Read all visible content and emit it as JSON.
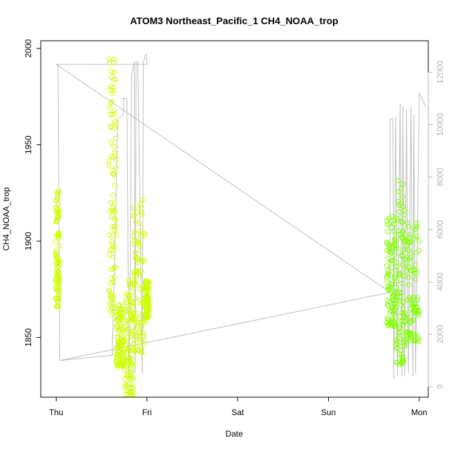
{
  "chart_data": {
    "type": "scatter",
    "title": "ATOM3 Northeast_Pacific_1 CH4_NOAA_trop",
    "xlabel": "Date",
    "ylabel": "CH4_NOAA_trop",
    "x_ticks": [
      "Thu",
      "Fri",
      "Sat",
      "Sun",
      "Mon"
    ],
    "x_unit": "days since start of Thu",
    "xlim": [
      -0.17,
      4.1
    ],
    "ylim": [
      1819,
      2004
    ],
    "y_ticks": [
      1850,
      1900,
      1950,
      2000
    ],
    "y2lim": [
      -400,
      13200
    ],
    "y2_ticks": [
      0,
      2000,
      4000,
      6000,
      8000,
      10000,
      12000
    ],
    "grid": false,
    "legend": "none",
    "colors": {
      "early_points": "#ccff00",
      "late_points": "#80ff00",
      "secondary_line": "#bebebe",
      "axis": "#000000"
    },
    "point_clusters": [
      {
        "x0": -0.01,
        "x1": 0.04,
        "y0": 1866,
        "y1": 1926,
        "color": "early"
      },
      {
        "x0": 0.58,
        "x1": 0.66,
        "y0": 1862,
        "y1": 1996,
        "color": "early"
      },
      {
        "x0": 0.66,
        "x1": 0.75,
        "y0": 1835,
        "y1": 1868,
        "color": "early"
      },
      {
        "x0": 0.75,
        "x1": 0.85,
        "y0": 1820,
        "y1": 1880,
        "color": "early"
      },
      {
        "x0": 0.85,
        "x1": 0.98,
        "y0": 1842,
        "y1": 1926,
        "color": "early"
      },
      {
        "x0": 0.98,
        "x1": 1.02,
        "y0": 1860,
        "y1": 1880,
        "color": "early"
      },
      {
        "x0": 3.64,
        "x1": 3.74,
        "y0": 1856,
        "y1": 1915,
        "color": "late"
      },
      {
        "x0": 3.74,
        "x1": 3.84,
        "y0": 1836,
        "y1": 1932,
        "color": "late"
      },
      {
        "x0": 3.84,
        "x1": 4.0,
        "y0": 1848,
        "y1": 1910,
        "color": "late"
      }
    ],
    "secondary_line": [
      [
        0.0,
        12300
      ],
      [
        0.01,
        12300
      ],
      [
        0.02,
        12300
      ],
      [
        0.04,
        1000
      ],
      [
        0.62,
        1200
      ],
      [
        0.62,
        2000
      ],
      [
        0.62,
        1500
      ],
      [
        0.68,
        10200
      ],
      [
        0.74,
        10400
      ],
      [
        0.74,
        10400
      ],
      [
        0.74,
        11000
      ],
      [
        0.78,
        11000
      ],
      [
        0.8,
        500
      ],
      [
        0.81,
        2000
      ],
      [
        0.83,
        11900
      ],
      [
        0.86,
        12400
      ],
      [
        0.87,
        500
      ],
      [
        0.88,
        12400
      ],
      [
        0.9,
        12400
      ],
      [
        0.95,
        500
      ],
      [
        0.96,
        12400
      ],
      [
        0.99,
        12700
      ],
      [
        1.0,
        12400
      ],
      [
        1.0,
        12300
      ],
      [
        0.0,
        12300
      ],
      [
        3.68,
        3600
      ],
      [
        3.68,
        10200
      ],
      [
        3.71,
        10200
      ],
      [
        3.72,
        300
      ],
      [
        3.74,
        10300
      ],
      [
        3.76,
        400
      ],
      [
        3.79,
        10800
      ],
      [
        3.81,
        400
      ],
      [
        3.82,
        10700
      ],
      [
        3.84,
        400
      ],
      [
        3.86,
        10600
      ],
      [
        3.88,
        500
      ],
      [
        3.91,
        10700
      ],
      [
        3.93,
        400
      ],
      [
        3.94,
        10400
      ],
      [
        3.96,
        500
      ],
      [
        4.0,
        10900
      ],
      [
        4.0,
        11200
      ],
      [
        4.07,
        10700
      ]
    ],
    "secondary_baseline": [
      [
        0.04,
        1000
      ],
      [
        3.68,
        3600
      ]
    ]
  }
}
